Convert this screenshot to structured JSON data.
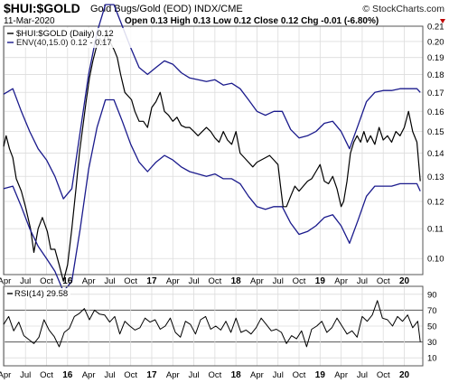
{
  "header": {
    "symbol": "$HUI:$GOLD",
    "description": "Gold Bugs/Gold (EOD) INDX/CME",
    "date": "11-Mar-2020",
    "ohlc": "Open 0.13  High 0.13  Low 0.12  Close 0.12  Chg -0.01 (-6.80%)",
    "copyright": "© StockCharts.com"
  },
  "colors": {
    "price": "#000000",
    "envelope": "#1a1a8c",
    "grid": "#dcdcdc",
    "frame": "#555555",
    "down_arrow": "#c00000"
  },
  "chart_data": [
    {
      "type": "line",
      "title": "$HUI:$GOLD Gold Bugs/Gold (EOD) INDX/CME",
      "legend": [
        "$HUI:$GOLD (Daily) 0.12",
        "ENV(40,15.0) 0.12 - 0.17"
      ],
      "legend_position": "top-left",
      "grid": true,
      "ylim": [
        0.095,
        0.21
      ],
      "yscale": "log",
      "yticks": [
        0.1,
        0.11,
        0.12,
        0.13,
        0.14,
        0.15,
        0.16,
        0.17,
        0.18,
        0.19,
        0.2,
        0.21
      ],
      "xlim": [
        2015.24,
        2020.22
      ],
      "xtick_labels": [
        "Apr",
        "Jul",
        "Oct",
        "16",
        "Apr",
        "Jul",
        "Oct",
        "17",
        "Apr",
        "Jul",
        "Oct",
        "18",
        "Apr",
        "Jul",
        "Oct",
        "19",
        "Apr",
        "Jul",
        "Oct",
        "20"
      ],
      "series": [
        {
          "name": "$HUI:$GOLD (Daily)",
          "x": [
            2015.24,
            2015.27,
            2015.31,
            2015.35,
            2015.39,
            2015.45,
            2015.5,
            2015.56,
            2015.6,
            2015.65,
            2015.7,
            2015.76,
            2015.8,
            2015.85,
            2015.9,
            2015.95,
            2016.0,
            2016.05,
            2016.1,
            2016.14,
            2016.18,
            2016.22,
            2016.26,
            2016.3,
            2016.34,
            2016.38,
            2016.42,
            2016.46,
            2016.5,
            2016.55,
            2016.59,
            2016.63,
            2016.68,
            2016.72,
            2016.76,
            2016.8,
            2016.85,
            2016.9,
            2016.95,
            2017.0,
            2017.05,
            2017.1,
            2017.15,
            2017.2,
            2017.25,
            2017.3,
            2017.35,
            2017.4,
            2017.45,
            2017.5,
            2017.55,
            2017.6,
            2017.65,
            2017.7,
            2017.75,
            2017.8,
            2017.85,
            2017.9,
            2017.95,
            2018.0,
            2018.05,
            2018.1,
            2018.15,
            2018.2,
            2018.25,
            2018.3,
            2018.35,
            2018.4,
            2018.45,
            2018.5,
            2018.53,
            2018.56,
            2018.6,
            2018.65,
            2018.7,
            2018.75,
            2018.8,
            2018.85,
            2018.9,
            2018.95,
            2019.0,
            2019.05,
            2019.1,
            2019.15,
            2019.2,
            2019.25,
            2019.28,
            2019.32,
            2019.36,
            2019.4,
            2019.44,
            2019.48,
            2019.52,
            2019.56,
            2019.6,
            2019.65,
            2019.7,
            2019.75,
            2019.8,
            2019.85,
            2019.9,
            2019.95,
            2020.0,
            2020.05,
            2020.1,
            2020.15,
            2020.19
          ],
          "values": [
            0.143,
            0.148,
            0.142,
            0.138,
            0.129,
            0.124,
            0.118,
            0.11,
            0.102,
            0.11,
            0.114,
            0.109,
            0.103,
            0.103,
            0.098,
            0.093,
            0.098,
            0.11,
            0.125,
            0.14,
            0.152,
            0.165,
            0.178,
            0.188,
            0.196,
            0.202,
            0.199,
            0.205,
            0.2,
            0.195,
            0.19,
            0.18,
            0.17,
            0.168,
            0.166,
            0.16,
            0.155,
            0.155,
            0.152,
            0.162,
            0.165,
            0.17,
            0.16,
            0.158,
            0.155,
            0.157,
            0.153,
            0.152,
            0.152,
            0.15,
            0.148,
            0.15,
            0.152,
            0.15,
            0.147,
            0.145,
            0.15,
            0.146,
            0.144,
            0.15,
            0.14,
            0.138,
            0.136,
            0.134,
            0.136,
            0.137,
            0.138,
            0.139,
            0.137,
            0.135,
            0.126,
            0.118,
            0.118,
            0.122,
            0.126,
            0.124,
            0.126,
            0.128,
            0.129,
            0.132,
            0.135,
            0.128,
            0.127,
            0.13,
            0.125,
            0.118,
            0.12,
            0.128,
            0.14,
            0.145,
            0.148,
            0.145,
            0.15,
            0.145,
            0.148,
            0.144,
            0.152,
            0.146,
            0.148,
            0.145,
            0.15,
            0.148,
            0.152,
            0.16,
            0.15,
            0.145,
            0.128
          ]
        },
        {
          "name": "ENV upper",
          "x": [
            2015.24,
            2015.35,
            2015.45,
            2015.55,
            2015.65,
            2015.75,
            2015.85,
            2015.95,
            2016.05,
            2016.15,
            2016.25,
            2016.35,
            2016.45,
            2016.55,
            2016.65,
            2016.75,
            2016.85,
            2016.95,
            2017.05,
            2017.15,
            2017.25,
            2017.35,
            2017.45,
            2017.55,
            2017.65,
            2017.75,
            2017.85,
            2017.95,
            2018.05,
            2018.15,
            2018.25,
            2018.35,
            2018.45,
            2018.55,
            2018.65,
            2018.75,
            2018.85,
            2018.95,
            2019.05,
            2019.15,
            2019.25,
            2019.35,
            2019.45,
            2019.55,
            2019.65,
            2019.75,
            2019.85,
            2019.95,
            2020.05,
            2020.15,
            2020.19
          ],
          "values": [
            0.169,
            0.172,
            0.16,
            0.15,
            0.142,
            0.137,
            0.13,
            0.121,
            0.125,
            0.15,
            0.18,
            0.206,
            0.225,
            0.225,
            0.21,
            0.196,
            0.184,
            0.18,
            0.184,
            0.188,
            0.186,
            0.181,
            0.178,
            0.177,
            0.176,
            0.177,
            0.174,
            0.175,
            0.172,
            0.166,
            0.16,
            0.158,
            0.16,
            0.16,
            0.151,
            0.147,
            0.148,
            0.15,
            0.154,
            0.155,
            0.15,
            0.142,
            0.153,
            0.165,
            0.17,
            0.171,
            0.171,
            0.172,
            0.172,
            0.172,
            0.17
          ]
        },
        {
          "name": "ENV lower",
          "x": [
            2015.24,
            2015.35,
            2015.45,
            2015.55,
            2015.65,
            2015.75,
            2015.85,
            2015.95,
            2016.05,
            2016.15,
            2016.25,
            2016.35,
            2016.45,
            2016.55,
            2016.65,
            2016.75,
            2016.85,
            2016.95,
            2017.05,
            2017.15,
            2017.25,
            2017.35,
            2017.45,
            2017.55,
            2017.65,
            2017.75,
            2017.85,
            2017.95,
            2018.05,
            2018.15,
            2018.25,
            2018.35,
            2018.45,
            2018.55,
            2018.65,
            2018.75,
            2018.85,
            2018.95,
            2019.05,
            2019.15,
            2019.25,
            2019.35,
            2019.45,
            2019.55,
            2019.65,
            2019.75,
            2019.85,
            2019.95,
            2020.05,
            2020.15,
            2020.19
          ],
          "values": [
            0.125,
            0.126,
            0.118,
            0.11,
            0.104,
            0.1,
            0.096,
            0.09,
            0.093,
            0.11,
            0.133,
            0.152,
            0.166,
            0.166,
            0.155,
            0.144,
            0.136,
            0.132,
            0.136,
            0.139,
            0.137,
            0.134,
            0.132,
            0.131,
            0.13,
            0.131,
            0.129,
            0.129,
            0.127,
            0.122,
            0.118,
            0.117,
            0.118,
            0.118,
            0.112,
            0.108,
            0.109,
            0.111,
            0.114,
            0.115,
            0.111,
            0.105,
            0.113,
            0.122,
            0.126,
            0.126,
            0.126,
            0.127,
            0.127,
            0.127,
            0.124
          ]
        }
      ]
    },
    {
      "type": "line",
      "legend": [
        "RSI(14) 29.58"
      ],
      "legend_position": "top-left",
      "grid": true,
      "ylim": [
        0,
        100
      ],
      "yticks": [
        10,
        30,
        50,
        70,
        90
      ],
      "reference_lines": [
        30,
        70
      ],
      "xlim": [
        2015.24,
        2020.22
      ],
      "xtick_labels": [
        "Apr",
        "Jul",
        "Oct",
        "16",
        "Apr",
        "Jul",
        "Oct",
        "17",
        "Apr",
        "Jul",
        "Oct",
        "18",
        "Apr",
        "Jul",
        "Oct",
        "19",
        "Apr",
        "Jul",
        "Oct",
        "20"
      ],
      "series": [
        {
          "name": "RSI(14)",
          "x": [
            2015.24,
            2015.3,
            2015.36,
            2015.42,
            2015.48,
            2015.54,
            2015.6,
            2015.66,
            2015.72,
            2015.78,
            2015.84,
            2015.9,
            2015.96,
            2016.02,
            2016.08,
            2016.14,
            2016.2,
            2016.26,
            2016.32,
            2016.38,
            2016.44,
            2016.5,
            2016.56,
            2016.62,
            2016.68,
            2016.74,
            2016.8,
            2016.86,
            2016.92,
            2016.98,
            2017.04,
            2017.1,
            2017.16,
            2017.22,
            2017.28,
            2017.34,
            2017.4,
            2017.46,
            2017.52,
            2017.58,
            2017.64,
            2017.7,
            2017.76,
            2017.82,
            2017.88,
            2017.94,
            2018.0,
            2018.06,
            2018.12,
            2018.18,
            2018.24,
            2018.3,
            2018.36,
            2018.42,
            2018.48,
            2018.54,
            2018.6,
            2018.66,
            2018.72,
            2018.78,
            2018.84,
            2018.9,
            2018.96,
            2019.02,
            2019.08,
            2019.14,
            2019.2,
            2019.26,
            2019.32,
            2019.38,
            2019.44,
            2019.5,
            2019.56,
            2019.62,
            2019.68,
            2019.74,
            2019.8,
            2019.86,
            2019.92,
            2019.98,
            2020.04,
            2020.1,
            2020.16,
            2020.19
          ],
          "values": [
            52,
            62,
            44,
            55,
            38,
            33,
            28,
            36,
            58,
            45,
            37,
            24,
            42,
            47,
            62,
            66,
            72,
            58,
            70,
            65,
            64,
            55,
            62,
            40,
            56,
            50,
            45,
            48,
            60,
            55,
            58,
            46,
            50,
            60,
            42,
            36,
            56,
            52,
            40,
            58,
            62,
            46,
            50,
            45,
            56,
            42,
            60,
            42,
            45,
            40,
            48,
            60,
            52,
            44,
            46,
            42,
            28,
            38,
            34,
            44,
            24,
            46,
            50,
            56,
            42,
            48,
            60,
            50,
            40,
            44,
            36,
            62,
            56,
            64,
            82,
            60,
            58,
            50,
            62,
            56,
            64,
            48,
            56,
            30
          ]
        }
      ]
    }
  ]
}
